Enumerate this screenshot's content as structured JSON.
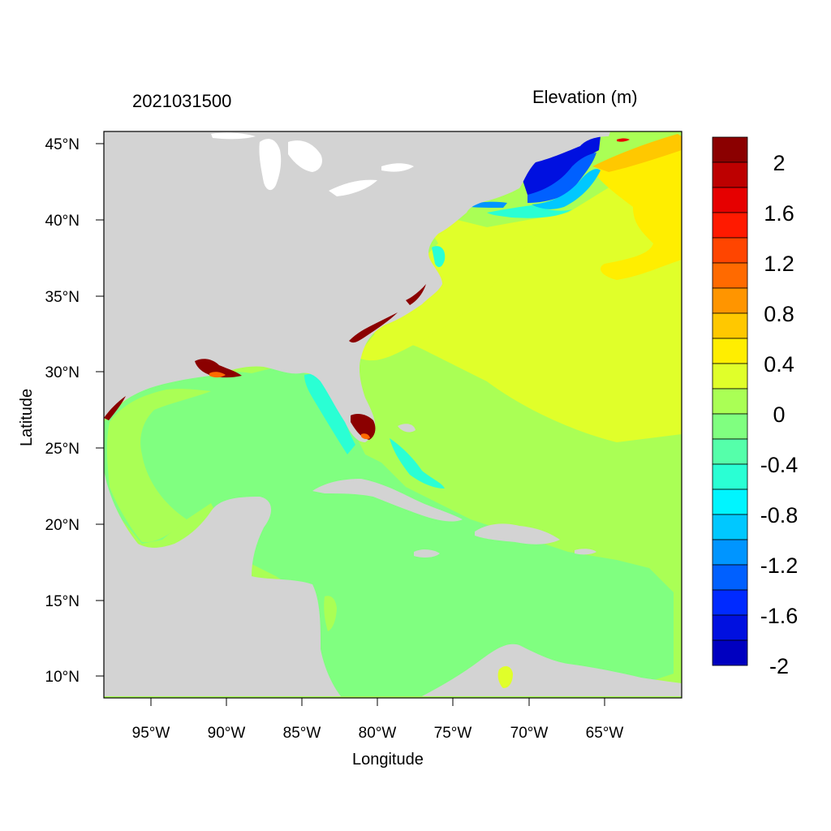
{
  "map": {
    "title": "2021031500",
    "colorbar_title": "Elevation (m)",
    "x_axis_title": "Longitude",
    "y_axis_title": "Latitude",
    "lat_ticks": [
      "45°N",
      "40°N",
      "35°N",
      "30°N",
      "25°N",
      "20°N",
      "15°N",
      "10°N"
    ],
    "lon_ticks": [
      "95°W",
      "90°W",
      "85°W",
      "80°W",
      "75°W",
      "70°W",
      "65°W"
    ],
    "land_color": "#d3d3d3"
  },
  "colorbar": {
    "labels": [
      "2",
      "1.6",
      "1.2",
      "0.8",
      "0.4",
      "0",
      "-0.4",
      "-0.8",
      "-1.2",
      "-1.6",
      "-2"
    ],
    "colors": [
      "#8b0000",
      "#bd0000",
      "#e60000",
      "#ff1a00",
      "#ff4500",
      "#ff6a00",
      "#ff9500",
      "#ffc800",
      "#ffee00",
      "#e0ff2a",
      "#aaff55",
      "#80ff80",
      "#55ffaa",
      "#2affd4",
      "#00f5ff",
      "#00c8ff",
      "#0095ff",
      "#0060ff",
      "#002aff",
      "#0010e0",
      "#0000c0"
    ]
  }
}
